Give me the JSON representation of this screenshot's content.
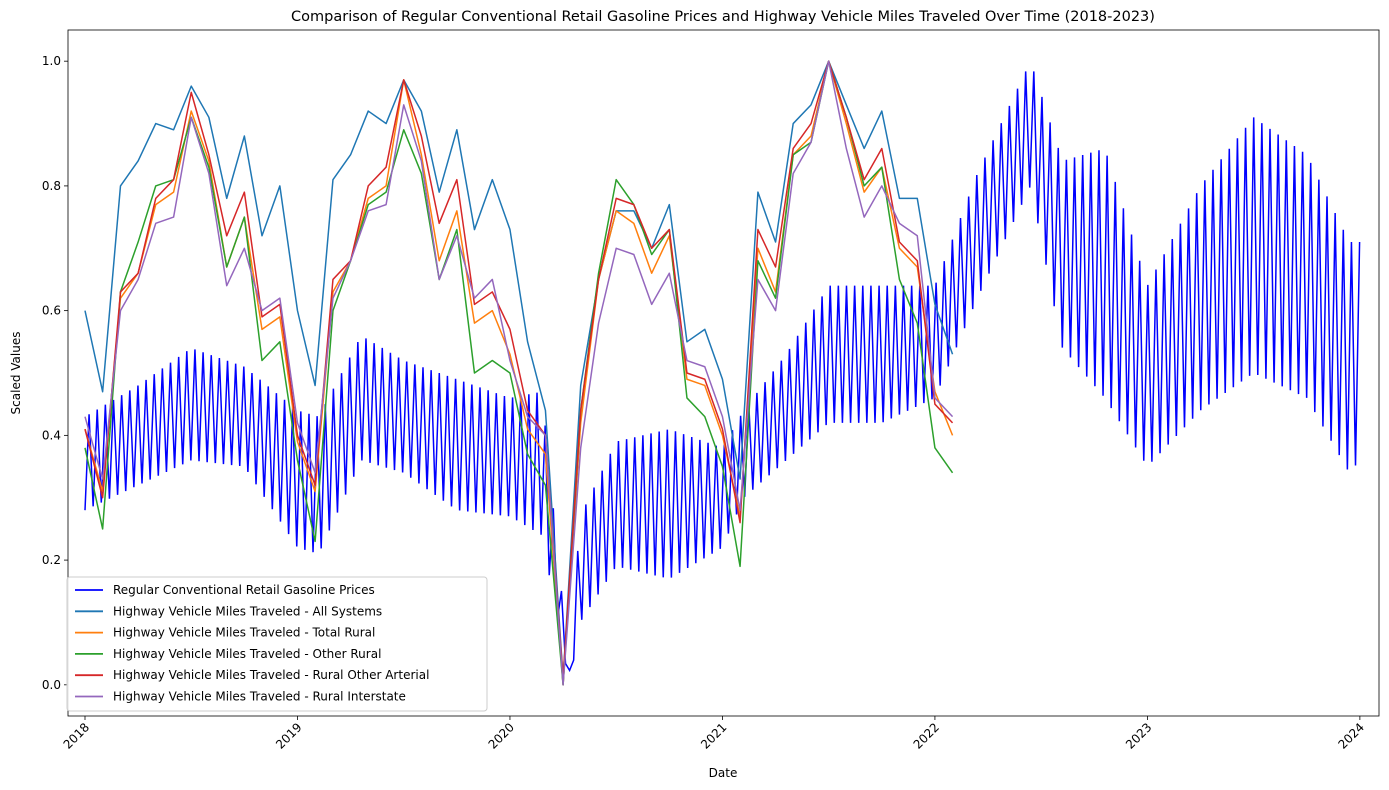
{
  "chart_data": {
    "type": "line",
    "title": "Comparison of Regular Conventional Retail Gasoline Prices and Highway Vehicle Miles Traveled Over Time (2018-2023)",
    "xlabel": "Date",
    "ylabel": "Scaled Values",
    "xlim": [
      2017.92,
      2024.09
    ],
    "ylim": [
      -0.05,
      1.05
    ],
    "x_ticks": [
      2018,
      2019,
      2020,
      2021,
      2022,
      2023,
      2024
    ],
    "x_tick_labels": [
      "2018",
      "2019",
      "2020",
      "2021",
      "2022",
      "2023",
      "2024"
    ],
    "y_ticks": [
      0.0,
      0.2,
      0.4,
      0.6,
      0.8,
      1.0
    ],
    "y_tick_labels": [
      "0.0",
      "0.2",
      "0.4",
      "0.6",
      "0.8",
      "1.0"
    ],
    "legend_position": "lower-left",
    "gasoline": {
      "name": "Regular Conventional Retail Gasoline Prices",
      "color": "#0000ff",
      "start": 2018.0,
      "step_weeks": 1,
      "oscillation": "alternating low/high weekly values between envelopes",
      "envelope_x": [
        2018.0,
        2018.25,
        2018.5,
        2018.75,
        2019.0,
        2019.1,
        2019.3,
        2019.5,
        2019.75,
        2020.0,
        2020.15,
        2020.28,
        2020.33,
        2020.5,
        2020.75,
        2021.0,
        2021.1,
        2021.3,
        2021.5,
        2021.75,
        2022.0,
        2022.2,
        2022.45,
        2022.6,
        2022.8,
        2023.0,
        2023.25,
        2023.5,
        2023.75,
        2023.95,
        2024.0
      ],
      "envelope_low": [
        0.28,
        0.32,
        0.36,
        0.35,
        0.22,
        0.21,
        0.36,
        0.34,
        0.28,
        0.27,
        0.24,
        0.0,
        0.1,
        0.19,
        0.17,
        0.22,
        0.3,
        0.36,
        0.42,
        0.42,
        0.46,
        0.62,
        0.8,
        0.54,
        0.46,
        0.35,
        0.44,
        0.5,
        0.46,
        0.34,
        0.36
      ],
      "envelope_high": [
        0.43,
        0.48,
        0.54,
        0.51,
        0.44,
        0.43,
        0.56,
        0.52,
        0.49,
        0.46,
        0.47,
        0.02,
        0.27,
        0.39,
        0.41,
        0.38,
        0.44,
        0.53,
        0.64,
        0.64,
        0.64,
        0.82,
        1.0,
        0.84,
        0.86,
        0.64,
        0.8,
        0.91,
        0.85,
        0.71,
        0.71
      ]
    },
    "series": [
      {
        "name": "Highway Vehicle Miles Traveled - All Systems",
        "color": "#1f77b4",
        "x": [
          2018.0,
          2018.083,
          2018.167,
          2018.25,
          2018.333,
          2018.417,
          2018.5,
          2018.583,
          2018.667,
          2018.75,
          2018.833,
          2018.917,
          2019.0,
          2019.083,
          2019.167,
          2019.25,
          2019.333,
          2019.417,
          2019.5,
          2019.583,
          2019.667,
          2019.75,
          2019.833,
          2019.917,
          2020.0,
          2020.083,
          2020.167,
          2020.25,
          2020.333,
          2020.417,
          2020.5,
          2020.583,
          2020.667,
          2020.75,
          2020.833,
          2020.917,
          2021.0,
          2021.083,
          2021.167,
          2021.25,
          2021.333,
          2021.417,
          2021.5,
          2021.583,
          2021.667,
          2021.75,
          2021.833,
          2021.917,
          2022.0,
          2022.083
        ],
        "values": [
          0.6,
          0.47,
          0.8,
          0.84,
          0.9,
          0.89,
          0.96,
          0.91,
          0.78,
          0.88,
          0.72,
          0.8,
          0.6,
          0.48,
          0.81,
          0.85,
          0.92,
          0.9,
          0.97,
          0.92,
          0.79,
          0.89,
          0.73,
          0.81,
          0.73,
          0.55,
          0.44,
          0.01,
          0.48,
          0.65,
          0.76,
          0.76,
          0.7,
          0.77,
          0.55,
          0.57,
          0.49,
          0.33,
          0.79,
          0.71,
          0.9,
          0.93,
          1.0,
          0.93,
          0.86,
          0.92,
          0.78,
          0.78,
          0.61,
          0.53
        ]
      },
      {
        "name": "Highway Vehicle Miles Traveled - Total Rural",
        "color": "#ff7f0e",
        "x": [
          2018.0,
          2018.083,
          2018.167,
          2018.25,
          2018.333,
          2018.417,
          2018.5,
          2018.583,
          2018.667,
          2018.75,
          2018.833,
          2018.917,
          2019.0,
          2019.083,
          2019.167,
          2019.25,
          2019.333,
          2019.417,
          2019.5,
          2019.583,
          2019.667,
          2019.75,
          2019.833,
          2019.917,
          2020.0,
          2020.083,
          2020.167,
          2020.25,
          2020.333,
          2020.417,
          2020.5,
          2020.583,
          2020.667,
          2020.75,
          2020.833,
          2020.917,
          2021.0,
          2021.083,
          2021.167,
          2021.25,
          2021.333,
          2021.417,
          2021.5,
          2021.583,
          2021.667,
          2021.75,
          2021.833,
          2021.917,
          2022.0,
          2022.083
        ],
        "values": [
          0.41,
          0.31,
          0.62,
          0.66,
          0.77,
          0.79,
          0.92,
          0.84,
          0.67,
          0.75,
          0.57,
          0.59,
          0.39,
          0.31,
          0.63,
          0.68,
          0.78,
          0.8,
          0.97,
          0.85,
          0.68,
          0.76,
          0.58,
          0.6,
          0.53,
          0.41,
          0.37,
          0.0,
          0.42,
          0.65,
          0.76,
          0.74,
          0.66,
          0.72,
          0.49,
          0.48,
          0.4,
          0.27,
          0.7,
          0.63,
          0.85,
          0.88,
          1.0,
          0.9,
          0.79,
          0.83,
          0.7,
          0.67,
          0.47,
          0.4
        ]
      },
      {
        "name": "Highway Vehicle Miles Traveled - Other Rural",
        "color": "#2ca02c",
        "x": [
          2018.0,
          2018.083,
          2018.167,
          2018.25,
          2018.333,
          2018.417,
          2018.5,
          2018.583,
          2018.667,
          2018.75,
          2018.833,
          2018.917,
          2019.0,
          2019.083,
          2019.167,
          2019.25,
          2019.333,
          2019.417,
          2019.5,
          2019.583,
          2019.667,
          2019.75,
          2019.833,
          2019.917,
          2020.0,
          2020.083,
          2020.167,
          2020.25,
          2020.333,
          2020.417,
          2020.5,
          2020.583,
          2020.667,
          2020.75,
          2020.833,
          2020.917,
          2021.0,
          2021.083,
          2021.167,
          2021.25,
          2021.333,
          2021.417,
          2021.5,
          2021.583,
          2021.667,
          2021.75,
          2021.833,
          2021.917,
          2022.0,
          2022.083
        ],
        "values": [
          0.38,
          0.25,
          0.63,
          0.71,
          0.8,
          0.81,
          0.91,
          0.83,
          0.67,
          0.75,
          0.52,
          0.55,
          0.36,
          0.23,
          0.6,
          0.68,
          0.77,
          0.79,
          0.89,
          0.82,
          0.65,
          0.73,
          0.5,
          0.52,
          0.5,
          0.37,
          0.32,
          0.0,
          0.44,
          0.66,
          0.81,
          0.77,
          0.69,
          0.73,
          0.46,
          0.43,
          0.35,
          0.19,
          0.68,
          0.62,
          0.85,
          0.87,
          1.0,
          0.91,
          0.8,
          0.83,
          0.65,
          0.58,
          0.38,
          0.34
        ]
      },
      {
        "name": "Highway Vehicle Miles Traveled - Rural Other Arterial",
        "color": "#d62728",
        "x": [
          2018.0,
          2018.083,
          2018.167,
          2018.25,
          2018.333,
          2018.417,
          2018.5,
          2018.583,
          2018.667,
          2018.75,
          2018.833,
          2018.917,
          2019.0,
          2019.083,
          2019.167,
          2019.25,
          2019.333,
          2019.417,
          2019.5,
          2019.583,
          2019.667,
          2019.75,
          2019.833,
          2019.917,
          2020.0,
          2020.083,
          2020.167,
          2020.25,
          2020.333,
          2020.417,
          2020.5,
          2020.583,
          2020.667,
          2020.75,
          2020.833,
          2020.917,
          2021.0,
          2021.083,
          2021.167,
          2021.25,
          2021.333,
          2021.417,
          2021.5,
          2021.583,
          2021.667,
          2021.75,
          2021.833,
          2021.917,
          2022.0,
          2022.083
        ],
        "values": [
          0.41,
          0.3,
          0.63,
          0.66,
          0.78,
          0.81,
          0.95,
          0.85,
          0.72,
          0.79,
          0.59,
          0.61,
          0.4,
          0.32,
          0.65,
          0.68,
          0.8,
          0.83,
          0.97,
          0.88,
          0.74,
          0.81,
          0.61,
          0.63,
          0.57,
          0.44,
          0.4,
          0.01,
          0.44,
          0.65,
          0.78,
          0.77,
          0.7,
          0.73,
          0.5,
          0.49,
          0.41,
          0.26,
          0.73,
          0.67,
          0.86,
          0.9,
          1.0,
          0.91,
          0.81,
          0.86,
          0.71,
          0.68,
          0.45,
          0.42
        ]
      },
      {
        "name": "Highway Vehicle Miles Traveled - Rural Interstate",
        "color": "#9467bd",
        "x": [
          2018.0,
          2018.083,
          2018.167,
          2018.25,
          2018.333,
          2018.417,
          2018.5,
          2018.583,
          2018.667,
          2018.75,
          2018.833,
          2018.917,
          2019.0,
          2019.083,
          2019.167,
          2019.25,
          2019.333,
          2019.417,
          2019.5,
          2019.583,
          2019.667,
          2019.75,
          2019.833,
          2019.917,
          2020.0,
          2020.083,
          2020.167,
          2020.25,
          2020.333,
          2020.417,
          2020.5,
          2020.583,
          2020.667,
          2020.75,
          2020.833,
          2020.917,
          2021.0,
          2021.083,
          2021.167,
          2021.25,
          2021.333,
          2021.417,
          2021.5,
          2021.583,
          2021.667,
          2021.75,
          2021.833,
          2021.917,
          2022.0,
          2022.083
        ],
        "values": [
          0.43,
          0.33,
          0.6,
          0.65,
          0.74,
          0.75,
          0.91,
          0.82,
          0.64,
          0.7,
          0.6,
          0.62,
          0.42,
          0.34,
          0.62,
          0.68,
          0.76,
          0.77,
          0.93,
          0.84,
          0.65,
          0.72,
          0.62,
          0.65,
          0.52,
          0.43,
          0.4,
          0.0,
          0.38,
          0.58,
          0.7,
          0.69,
          0.61,
          0.66,
          0.52,
          0.51,
          0.43,
          0.28,
          0.65,
          0.6,
          0.82,
          0.87,
          1.0,
          0.86,
          0.75,
          0.8,
          0.74,
          0.72,
          0.46,
          0.43
        ]
      }
    ]
  }
}
